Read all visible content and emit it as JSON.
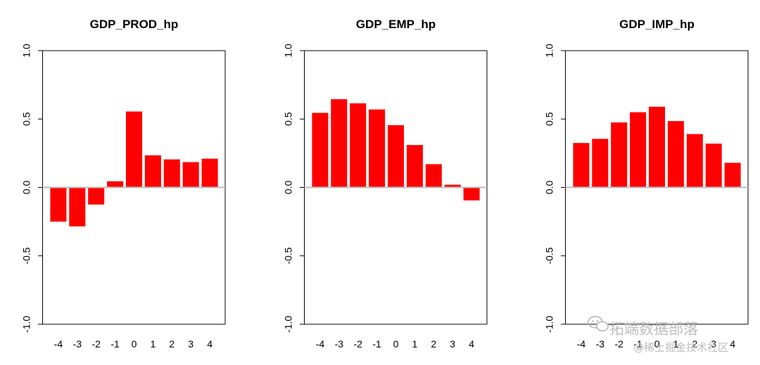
{
  "chart_data": [
    {
      "type": "bar",
      "title": "GDP_PROD_hp",
      "categories": [
        "-4",
        "-3",
        "-2",
        "-1",
        "0",
        "1",
        "2",
        "3",
        "4"
      ],
      "values": [
        -0.25,
        -0.285,
        -0.125,
        0.045,
        0.555,
        0.235,
        0.205,
        0.185,
        0.21
      ],
      "ylim": [
        -1.0,
        1.0
      ],
      "yticks": [
        "-1.0",
        "-0.5",
        "0.0",
        "0.5",
        "1.0"
      ],
      "ytick_values": [
        -1.0,
        -0.5,
        0.0,
        0.5,
        1.0
      ],
      "bar_color": "#ff0000",
      "zero_line_color": "#bebebe"
    },
    {
      "type": "bar",
      "title": "GDP_EMP_hp",
      "categories": [
        "-4",
        "-3",
        "-2",
        "-1",
        "0",
        "1",
        "2",
        "3",
        "4"
      ],
      "values": [
        0.545,
        0.645,
        0.615,
        0.57,
        0.455,
        0.31,
        0.17,
        0.02,
        -0.095
      ],
      "ylim": [
        -1.0,
        1.0
      ],
      "yticks": [
        "-1.0",
        "-0.5",
        "0.0",
        "0.5",
        "1.0"
      ],
      "ytick_values": [
        -1.0,
        -0.5,
        0.0,
        0.5,
        1.0
      ],
      "bar_color": "#ff0000",
      "zero_line_color": "#bebebe"
    },
    {
      "type": "bar",
      "title": "GDP_IMP_hp",
      "categories": [
        "-4",
        "-3",
        "-2",
        "-1",
        "0",
        "1",
        "2",
        "3",
        "4"
      ],
      "values": [
        0.325,
        0.355,
        0.475,
        0.55,
        0.59,
        0.485,
        0.39,
        0.32,
        0.18
      ],
      "ylim": [
        -1.0,
        1.0
      ],
      "yticks": [
        "-1.0",
        "-0.5",
        "0.0",
        "0.5",
        "1.0"
      ],
      "ytick_values": [
        -1.0,
        -0.5,
        0.0,
        0.5,
        1.0
      ],
      "bar_color": "#ff0000",
      "zero_line_color": "#bebebe"
    }
  ],
  "watermark": {
    "line1": "拓端数据部落",
    "line2": "@稀土掘金技术社区",
    "icon": "wechat-icon"
  }
}
